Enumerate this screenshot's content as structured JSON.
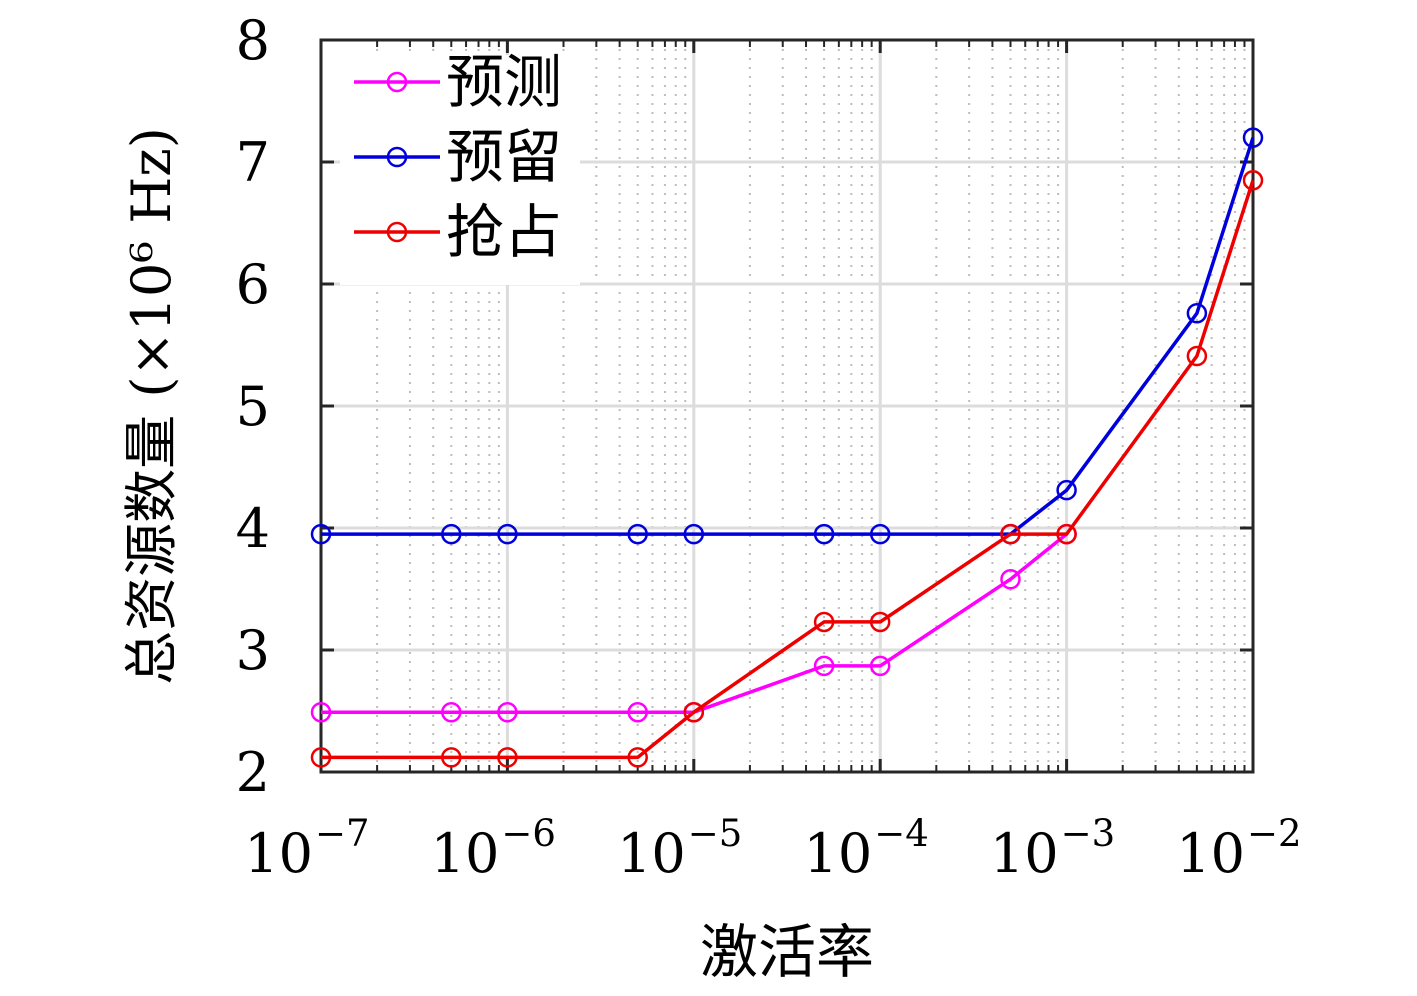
{
  "chart_data": {
    "type": "line",
    "title": "",
    "xlabel": "激活率",
    "ylabel": "总资源数量 (×10⁶ Hz)",
    "x_scale": "log",
    "xlim": [
      1e-07,
      0.01
    ],
    "ylim": [
      2,
      8
    ],
    "x_ticks": [
      {
        "value": 1e-07,
        "base": "10",
        "exp": "−7"
      },
      {
        "value": 1e-06,
        "base": "10",
        "exp": "−6"
      },
      {
        "value": 1e-05,
        "base": "10",
        "exp": "−5"
      },
      {
        "value": 0.0001,
        "base": "10",
        "exp": "−4"
      },
      {
        "value": 0.001,
        "base": "10",
        "exp": "−3"
      },
      {
        "value": 0.01,
        "base": "10",
        "exp": "−2"
      }
    ],
    "y_ticks": [
      2,
      3,
      4,
      5,
      6,
      7,
      8
    ],
    "grid": true,
    "legend_position": "top-left",
    "x": [
      1e-07,
      5e-07,
      1e-06,
      5e-06,
      1e-05,
      5e-05,
      0.0001,
      0.0005,
      0.001,
      0.005,
      0.01
    ],
    "series": [
      {
        "name": "预测",
        "color": "#ff00ff",
        "marker": "circle",
        "values": [
          2.49,
          2.49,
          2.49,
          2.49,
          2.49,
          2.87,
          2.87,
          3.58,
          3.95,
          null,
          null
        ]
      },
      {
        "name": "预留",
        "color": "#0000dd",
        "marker": "circle",
        "values": [
          3.95,
          3.95,
          3.95,
          3.95,
          3.95,
          3.95,
          3.95,
          3.95,
          4.31,
          5.76,
          7.2
        ]
      },
      {
        "name": "抢占",
        "color": "#ee0000",
        "marker": "circle",
        "values": [
          2.12,
          2.12,
          2.12,
          2.12,
          2.49,
          3.23,
          3.23,
          3.95,
          3.95,
          5.41,
          6.85
        ]
      }
    ]
  }
}
